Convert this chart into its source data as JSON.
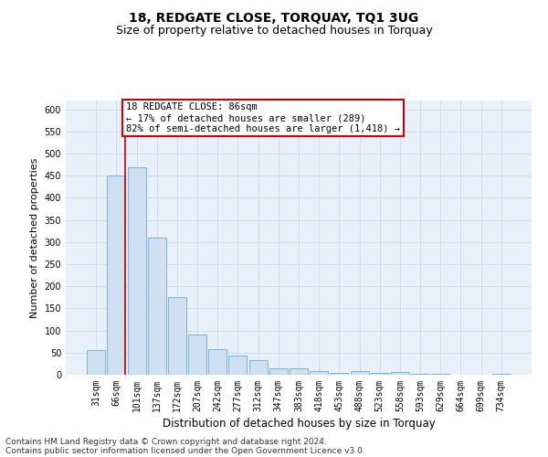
{
  "title": "18, REDGATE CLOSE, TORQUAY, TQ1 3UG",
  "subtitle": "Size of property relative to detached houses in Torquay",
  "xlabel": "Distribution of detached houses by size in Torquay",
  "ylabel": "Number of detached properties",
  "categories": [
    "31sqm",
    "66sqm",
    "101sqm",
    "137sqm",
    "172sqm",
    "207sqm",
    "242sqm",
    "277sqm",
    "312sqm",
    "347sqm",
    "383sqm",
    "418sqm",
    "453sqm",
    "488sqm",
    "523sqm",
    "558sqm",
    "593sqm",
    "629sqm",
    "664sqm",
    "699sqm",
    "734sqm"
  ],
  "values": [
    55,
    450,
    470,
    310,
    175,
    90,
    57,
    43,
    33,
    15,
    15,
    8,
    5,
    8,
    5,
    7,
    2,
    2,
    1,
    1,
    2
  ],
  "bar_color": "#cfe0f3",
  "bar_edge_color": "#6aaad4",
  "annotation_text": "18 REDGATE CLOSE: 86sqm\n← 17% of detached houses are smaller (289)\n82% of semi-detached houses are larger (1,418) →",
  "annotation_box_color": "#ffffff",
  "annotation_box_edge": "#cc0000",
  "vline_color": "#cc0000",
  "ylim": [
    0,
    620
  ],
  "yticks": [
    0,
    50,
    100,
    150,
    200,
    250,
    300,
    350,
    400,
    450,
    500,
    550,
    600
  ],
  "grid_color": "#c8d8e8",
  "background_color": "#e8f0fa",
  "footer1": "Contains HM Land Registry data © Crown copyright and database right 2024.",
  "footer2": "Contains public sector information licensed under the Open Government Licence v3.0.",
  "title_fontsize": 10,
  "subtitle_fontsize": 9,
  "xlabel_fontsize": 8.5,
  "ylabel_fontsize": 8,
  "tick_fontsize": 7,
  "footer_fontsize": 6.5,
  "vline_x": 1.43
}
